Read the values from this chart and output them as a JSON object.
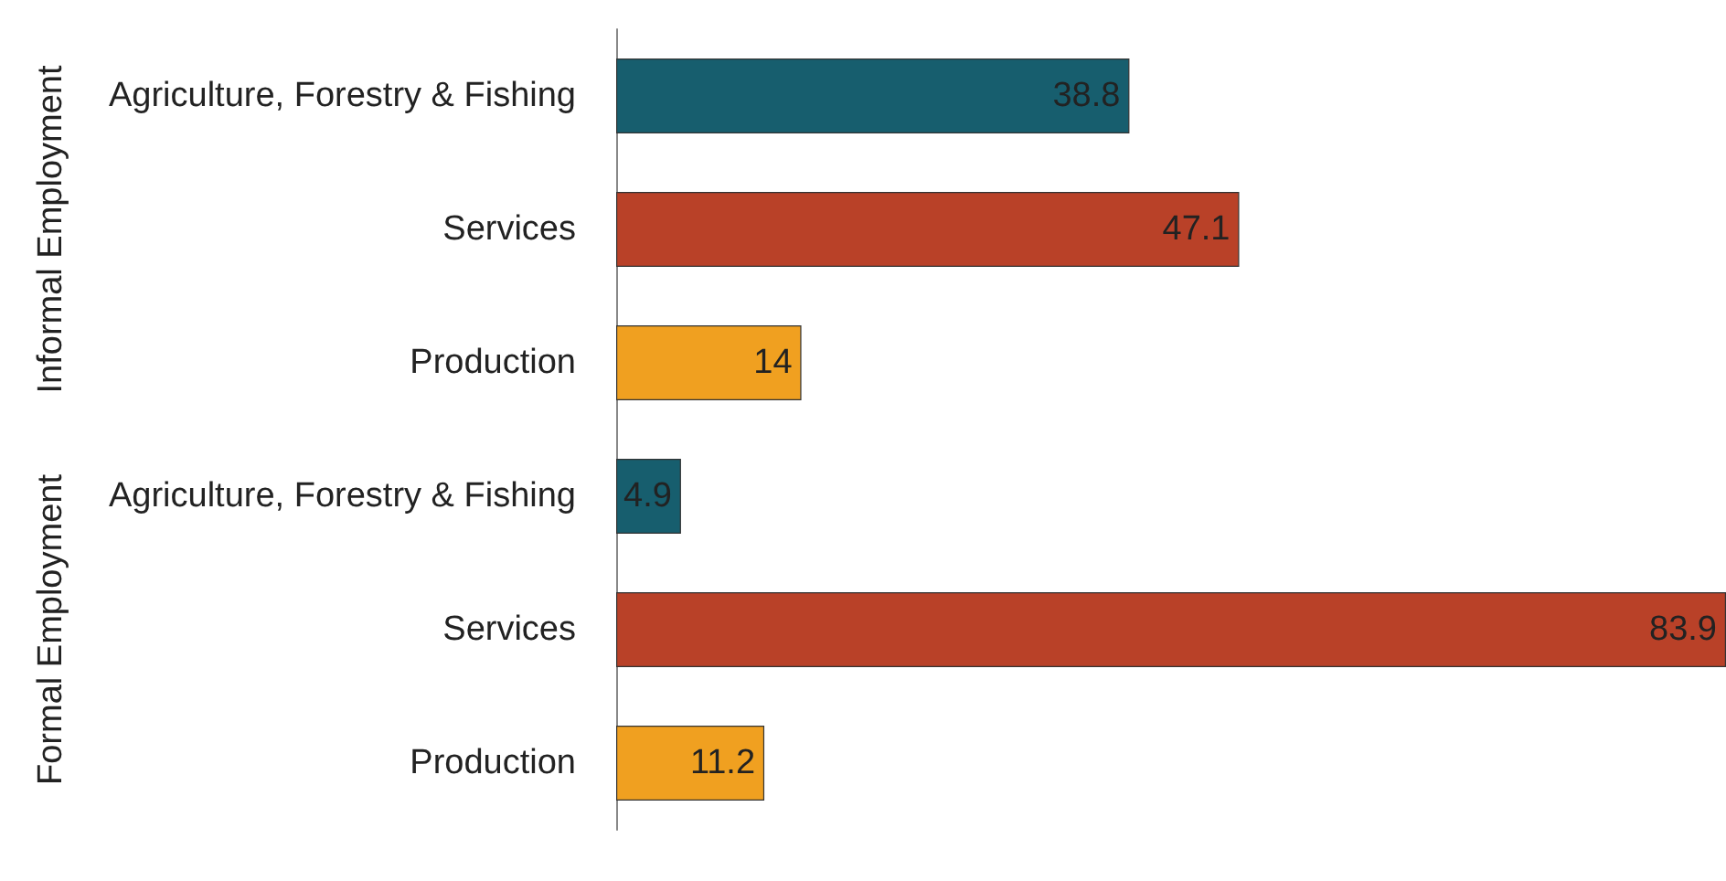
{
  "chart_data": {
    "type": "bar",
    "orientation": "horizontal",
    "categories": [
      "Agriculture, Forestry & Fishing",
      "Services",
      "Production",
      "Agriculture, Forestry & Fishing",
      "Services",
      "Production"
    ],
    "values": [
      38.8,
      47.1,
      14,
      4.9,
      83.9,
      11.2
    ],
    "colors": [
      "#175e6e",
      "#b94128",
      "#f0a020",
      "#175e6e",
      "#b94128",
      "#f0a020"
    ],
    "data_labels": true,
    "annotations": [
      "Informal Employment",
      "Formal Employment"
    ]
  }
}
